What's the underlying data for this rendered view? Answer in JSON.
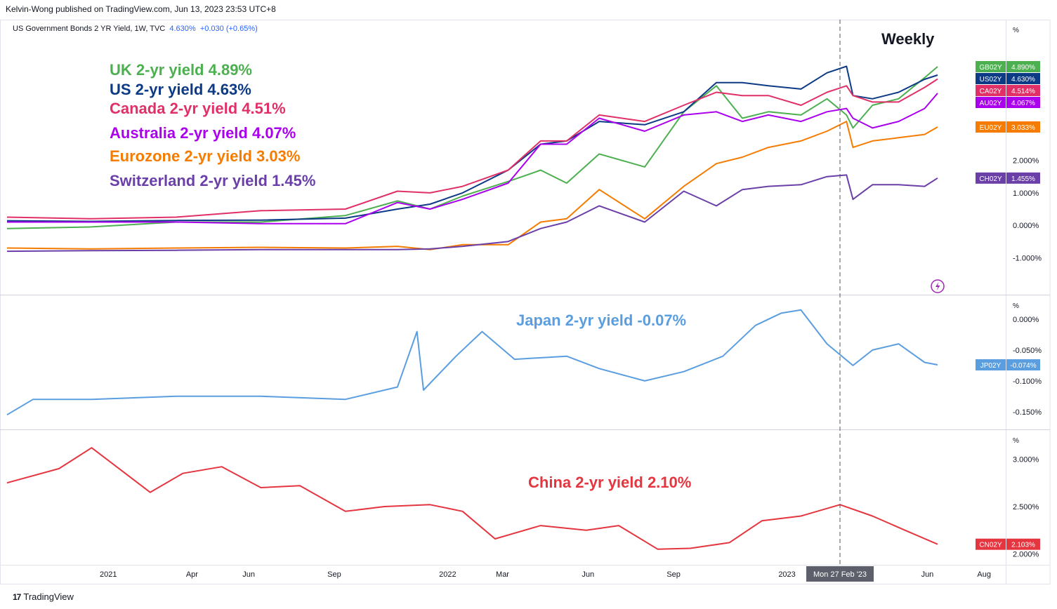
{
  "header": {
    "published_by": "Kelvin-Wong published on TradingView.com, Jun 13, 2023 23:53 UTC+8",
    "symbol": "US Government Bonds 2 YR Yield, 1W, TVC",
    "last": "4.630%",
    "change": "+0.030 (+0.65%)"
  },
  "footer": {
    "logo_glyph": "17",
    "brand": "TradingView"
  },
  "timeframe_label": "Weekly",
  "crosshair": {
    "date_label": "Mon 27 Feb '23",
    "x_date": "2023-02-27"
  },
  "x_axis": {
    "ticks": [
      {
        "label": "2021",
        "date": "2021-01-01"
      },
      {
        "label": "Apr",
        "date": "2021-04-01"
      },
      {
        "label": "Jun",
        "date": "2021-06-01"
      },
      {
        "label": "Sep",
        "date": "2021-09-01"
      },
      {
        "label": "2022",
        "date": "2022-01-01"
      },
      {
        "label": "Mar",
        "date": "2022-03-01"
      },
      {
        "label": "Jun",
        "date": "2022-06-01"
      },
      {
        "label": "Sep",
        "date": "2022-09-01"
      },
      {
        "label": "2023",
        "date": "2023-01-01"
      },
      {
        "label": "Jun",
        "date": "2023-06-01"
      },
      {
        "label": "Aug",
        "date": "2023-08-01"
      }
    ]
  },
  "chart_data": [
    {
      "type": "line",
      "unit_label": "%",
      "ylim": [
        -1.8,
        6.0
      ],
      "y_ticks": [
        {
          "label": "2.000%",
          "value": 2.0
        },
        {
          "label": "1.000%",
          "value": 1.0
        },
        {
          "label": "0.000%",
          "value": 0.0
        },
        {
          "label": "-1.000%",
          "value": -1.0
        }
      ],
      "x": [
        "2020-09-14",
        "2020-12-14",
        "2021-03-15",
        "2021-06-14",
        "2021-09-13",
        "2021-11-08",
        "2021-12-13",
        "2022-01-17",
        "2022-03-07",
        "2022-04-11",
        "2022-05-09",
        "2022-06-13",
        "2022-08-01",
        "2022-09-12",
        "2022-10-17",
        "2022-11-14",
        "2022-12-12",
        "2023-01-16",
        "2023-02-13",
        "2023-03-06",
        "2023-03-13",
        "2023-04-03",
        "2023-05-01",
        "2023-05-29",
        "2023-06-12"
      ],
      "series": [
        {
          "name": "UK 2-yr yield 4.89%",
          "symbol": "GB02Y",
          "last_label": "4.890%",
          "color": "#4caf50",
          "values": [
            -0.1,
            -0.05,
            0.1,
            0.1,
            0.3,
            0.75,
            0.5,
            0.9,
            1.35,
            1.7,
            1.3,
            2.2,
            1.8,
            3.5,
            4.3,
            3.3,
            3.5,
            3.4,
            3.9,
            3.4,
            3.0,
            3.7,
            3.9,
            4.55,
            4.89
          ]
        },
        {
          "name": "US 2-yr yield 4.63%",
          "symbol": "US02Y",
          "last_label": "4.630%",
          "color": "#0d3a85",
          "values": [
            0.14,
            0.12,
            0.15,
            0.16,
            0.22,
            0.5,
            0.65,
            1.0,
            1.7,
            2.5,
            2.6,
            3.2,
            3.1,
            3.5,
            4.4,
            4.4,
            4.3,
            4.2,
            4.7,
            4.9,
            4.0,
            3.9,
            4.1,
            4.5,
            4.63
          ]
        },
        {
          "name": "Canada 2-yr yield 4.51%",
          "symbol": "CA02Y",
          "last_label": "4.514%",
          "color": "#e03067",
          "values": [
            0.25,
            0.2,
            0.25,
            0.45,
            0.5,
            1.05,
            1.0,
            1.2,
            1.7,
            2.6,
            2.6,
            3.4,
            3.2,
            3.7,
            4.1,
            4.0,
            4.0,
            3.7,
            4.1,
            4.3,
            4.0,
            3.8,
            3.8,
            4.25,
            4.51
          ]
        },
        {
          "name": "Australia  2-yr yield 4.07%",
          "symbol": "AU02Y",
          "last_label": "4.067%",
          "color": "#aa00ee",
          "values": [
            0.1,
            0.1,
            0.1,
            0.05,
            0.05,
            0.7,
            0.5,
            0.8,
            1.3,
            2.5,
            2.5,
            3.3,
            2.9,
            3.4,
            3.5,
            3.2,
            3.4,
            3.2,
            3.5,
            3.6,
            3.3,
            3.0,
            3.2,
            3.6,
            4.07
          ]
        },
        {
          "name": "Eurozone  2-yr yield 3.03%",
          "symbol": "EU02Y",
          "last_label": "3.033%",
          "color": "#f57c00",
          "values": [
            -0.7,
            -0.73,
            -0.7,
            -0.68,
            -0.7,
            -0.65,
            -0.75,
            -0.6,
            -0.6,
            0.1,
            0.2,
            1.1,
            0.2,
            1.2,
            1.9,
            2.1,
            2.4,
            2.6,
            2.9,
            3.2,
            2.4,
            2.6,
            2.7,
            2.8,
            3.03
          ]
        },
        {
          "name": "Switzerland  2-yr yield 1.45%",
          "symbol": "CH02Y",
          "last_label": "1.455%",
          "color": "#6b3fa8",
          "values": [
            -0.8,
            -0.78,
            -0.77,
            -0.75,
            -0.75,
            -0.75,
            -0.73,
            -0.65,
            -0.5,
            -0.1,
            0.1,
            0.6,
            0.1,
            1.05,
            0.6,
            1.1,
            1.2,
            1.25,
            1.5,
            1.55,
            0.8,
            1.25,
            1.25,
            1.2,
            1.455
          ]
        }
      ]
    },
    {
      "type": "line",
      "unit_label": "%",
      "ylim": [
        -0.17,
        0.03
      ],
      "y_ticks": [
        {
          "label": "0.000%",
          "value": 0.0
        },
        {
          "label": "-0.050%",
          "value": -0.05
        },
        {
          "label": "-0.100%",
          "value": -0.1
        },
        {
          "label": "-0.150%",
          "value": -0.15
        }
      ],
      "x": [
        "2020-09-14",
        "2020-10-12",
        "2020-12-14",
        "2021-03-15",
        "2021-06-14",
        "2021-09-13",
        "2021-11-08",
        "2021-11-29",
        "2021-12-06",
        "2022-01-10",
        "2022-02-07",
        "2022-03-14",
        "2022-05-09",
        "2022-06-13",
        "2022-08-01",
        "2022-09-12",
        "2022-10-24",
        "2022-11-28",
        "2022-12-26",
        "2023-01-16",
        "2023-02-13",
        "2023-03-13",
        "2023-04-03",
        "2023-05-01",
        "2023-05-29",
        "2023-06-12"
      ],
      "series": [
        {
          "name": "Japan 2-yr yield -0.07%",
          "symbol": "JP02Y",
          "last_label": "-0.074%",
          "color": "#5b9ee0",
          "values": [
            -0.155,
            -0.13,
            -0.13,
            -0.125,
            -0.125,
            -0.13,
            -0.11,
            -0.02,
            -0.115,
            -0.06,
            -0.02,
            -0.065,
            -0.06,
            -0.08,
            -0.1,
            -0.085,
            -0.06,
            -0.01,
            0.01,
            0.015,
            -0.04,
            -0.075,
            -0.05,
            -0.04,
            -0.07,
            -0.074
          ]
        }
      ]
    },
    {
      "type": "line",
      "unit_label": "%",
      "ylim": [
        1.95,
        3.25
      ],
      "y_ticks": [
        {
          "label": "3.000%",
          "value": 3.0
        },
        {
          "label": "2.500%",
          "value": 2.5
        },
        {
          "label": "2.000%",
          "value": 2.0
        }
      ],
      "x": [
        "2020-09-14",
        "2020-11-09",
        "2020-12-14",
        "2021-02-15",
        "2021-03-22",
        "2021-05-03",
        "2021-06-14",
        "2021-07-26",
        "2021-09-13",
        "2021-10-25",
        "2021-12-13",
        "2022-01-17",
        "2022-02-21",
        "2022-04-11",
        "2022-05-30",
        "2022-07-04",
        "2022-08-15",
        "2022-09-19",
        "2022-10-31",
        "2022-12-05",
        "2023-01-16",
        "2023-02-27",
        "2023-04-03",
        "2023-05-08",
        "2023-06-12"
      ],
      "series": [
        {
          "name": "China 2-yr yield 2.10%",
          "symbol": "CN02Y",
          "last_label": "2.103%",
          "color": "#e5353f",
          "values": [
            2.75,
            2.9,
            3.12,
            2.65,
            2.85,
            2.92,
            2.7,
            2.72,
            2.45,
            2.5,
            2.52,
            2.45,
            2.16,
            2.3,
            2.25,
            2.3,
            2.05,
            2.06,
            2.12,
            2.35,
            2.4,
            2.52,
            2.4,
            2.25,
            2.103
          ]
        }
      ]
    }
  ]
}
